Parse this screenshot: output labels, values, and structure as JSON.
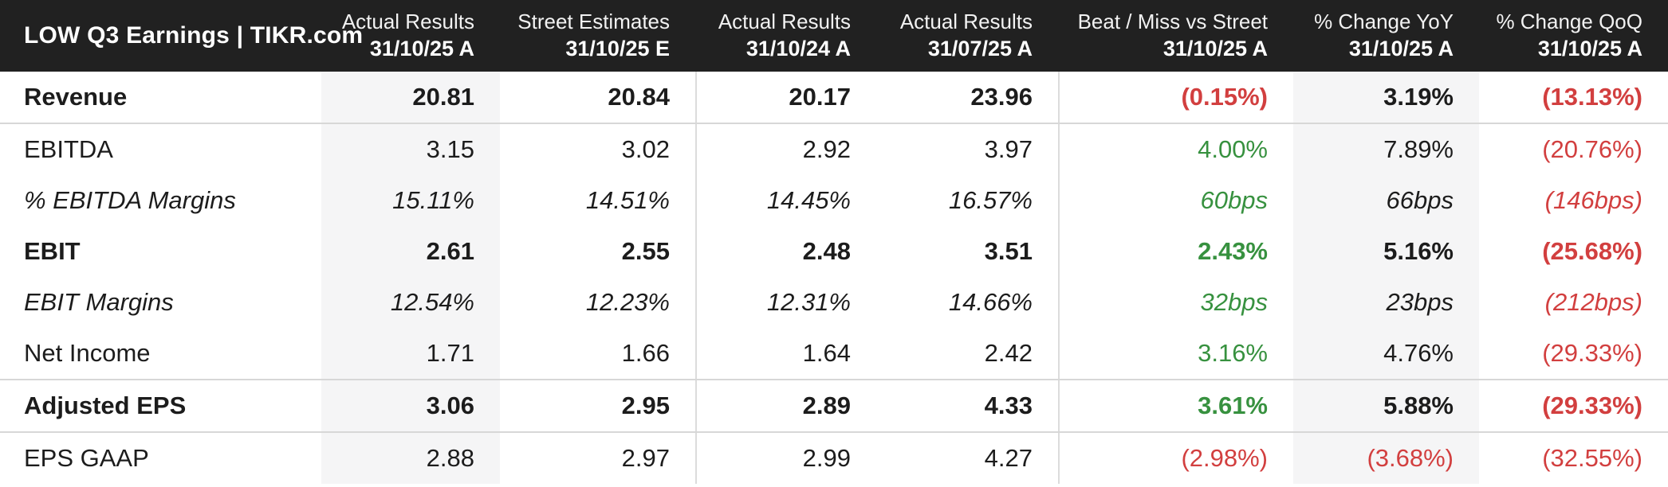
{
  "title": "LOW Q3 Earnings | TIKR.com",
  "colors": {
    "header_bg": "#212121",
    "header_text": "#ffffff",
    "body_text": "#1c1c1c",
    "positive_green": "#37913f",
    "negative_red": "#d23f3f",
    "column_shade": "#f5f5f6",
    "rule_gray": "#d7d7d7"
  },
  "chart_data": {
    "type": "table",
    "title": "LOW Q3 Earnings | TIKR.com",
    "columns": [
      {
        "label": "Actual Results",
        "period": "31/10/25 A"
      },
      {
        "label": "Street Estimates",
        "period": "31/10/25 E"
      },
      {
        "label": "Actual Results",
        "period": "31/10/24 A"
      },
      {
        "label": "Actual Results",
        "period": "31/07/25 A"
      },
      {
        "label": "Beat / Miss vs Street",
        "period": "31/10/25 A"
      },
      {
        "label": "% Change YoY",
        "period": "31/10/25 A"
      },
      {
        "label": "% Change QoQ",
        "period": "31/10/25 A"
      }
    ],
    "rows": [
      {
        "label": "Revenue",
        "emphasis": "bold",
        "rule_below": true,
        "values": [
          {
            "text": "20.81",
            "tone": "default"
          },
          {
            "text": "20.84",
            "tone": "default"
          },
          {
            "text": "20.17",
            "tone": "default"
          },
          {
            "text": "23.96",
            "tone": "default"
          },
          {
            "text": "(0.15%)",
            "tone": "down"
          },
          {
            "text": "3.19%",
            "tone": "default"
          },
          {
            "text": "(13.13%)",
            "tone": "down"
          }
        ]
      },
      {
        "label": "EBITDA",
        "emphasis": "normal",
        "rule_below": false,
        "values": [
          {
            "text": "3.15",
            "tone": "default"
          },
          {
            "text": "3.02",
            "tone": "default"
          },
          {
            "text": "2.92",
            "tone": "default"
          },
          {
            "text": "3.97",
            "tone": "default"
          },
          {
            "text": "4.00%",
            "tone": "up"
          },
          {
            "text": "7.89%",
            "tone": "default"
          },
          {
            "text": "(20.76%)",
            "tone": "down"
          }
        ]
      },
      {
        "label": "% EBITDA Margins",
        "emphasis": "italic",
        "rule_below": false,
        "values": [
          {
            "text": "15.11%",
            "tone": "default"
          },
          {
            "text": "14.51%",
            "tone": "default"
          },
          {
            "text": "14.45%",
            "tone": "default"
          },
          {
            "text": "16.57%",
            "tone": "default"
          },
          {
            "text": "60bps",
            "tone": "up"
          },
          {
            "text": "66bps",
            "tone": "default"
          },
          {
            "text": "(146bps)",
            "tone": "down"
          }
        ]
      },
      {
        "label": "EBIT",
        "emphasis": "bold",
        "rule_below": false,
        "values": [
          {
            "text": "2.61",
            "tone": "default"
          },
          {
            "text": "2.55",
            "tone": "default"
          },
          {
            "text": "2.48",
            "tone": "default"
          },
          {
            "text": "3.51",
            "tone": "default"
          },
          {
            "text": "2.43%",
            "tone": "up"
          },
          {
            "text": "5.16%",
            "tone": "default"
          },
          {
            "text": "(25.68%)",
            "tone": "down"
          }
        ]
      },
      {
        "label": "EBIT Margins",
        "emphasis": "italic",
        "rule_below": false,
        "values": [
          {
            "text": "12.54%",
            "tone": "default"
          },
          {
            "text": "12.23%",
            "tone": "default"
          },
          {
            "text": "12.31%",
            "tone": "default"
          },
          {
            "text": "14.66%",
            "tone": "default"
          },
          {
            "text": "32bps",
            "tone": "up"
          },
          {
            "text": "23bps",
            "tone": "default"
          },
          {
            "text": "(212bps)",
            "tone": "down"
          }
        ]
      },
      {
        "label": "Net Income",
        "emphasis": "normal",
        "rule_below": true,
        "values": [
          {
            "text": "1.71",
            "tone": "default"
          },
          {
            "text": "1.66",
            "tone": "default"
          },
          {
            "text": "1.64",
            "tone": "default"
          },
          {
            "text": "2.42",
            "tone": "default"
          },
          {
            "text": "3.16%",
            "tone": "up"
          },
          {
            "text": "4.76%",
            "tone": "default"
          },
          {
            "text": "(29.33%)",
            "tone": "down"
          }
        ]
      },
      {
        "label": "Adjusted EPS",
        "emphasis": "bold",
        "rule_below": true,
        "values": [
          {
            "text": "3.06",
            "tone": "default"
          },
          {
            "text": "2.95",
            "tone": "default"
          },
          {
            "text": "2.89",
            "tone": "default"
          },
          {
            "text": "4.33",
            "tone": "default"
          },
          {
            "text": "3.61%",
            "tone": "up"
          },
          {
            "text": "5.88%",
            "tone": "default"
          },
          {
            "text": "(29.33%)",
            "tone": "down"
          }
        ]
      },
      {
        "label": "EPS GAAP",
        "emphasis": "normal",
        "rule_below": false,
        "values": [
          {
            "text": "2.88",
            "tone": "default"
          },
          {
            "text": "2.97",
            "tone": "default"
          },
          {
            "text": "2.99",
            "tone": "default"
          },
          {
            "text": "4.27",
            "tone": "default"
          },
          {
            "text": "(2.98%)",
            "tone": "down"
          },
          {
            "text": "(3.68%)",
            "tone": "down"
          },
          {
            "text": "(32.55%)",
            "tone": "down"
          }
        ]
      }
    ]
  }
}
